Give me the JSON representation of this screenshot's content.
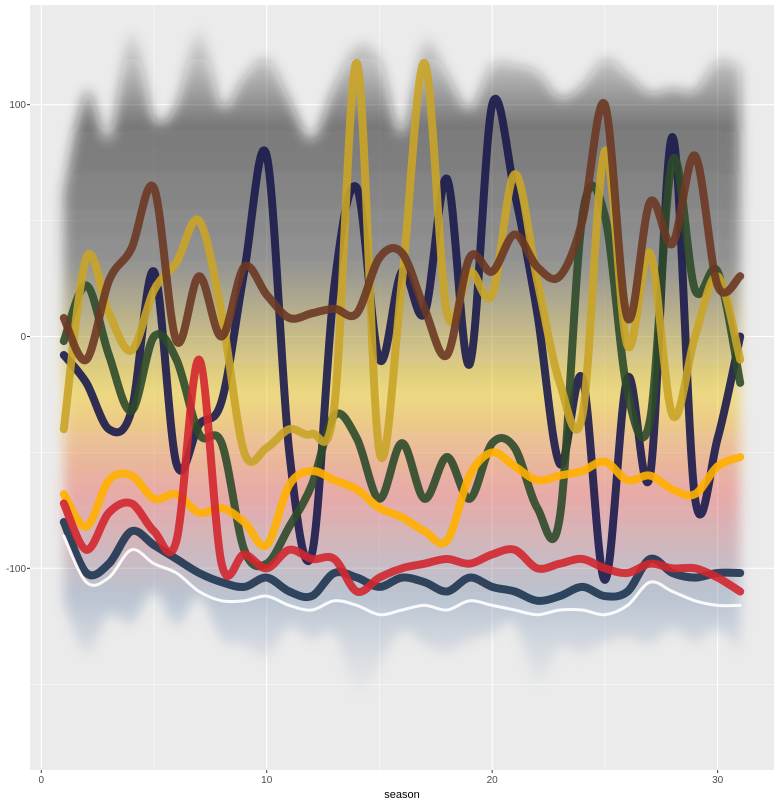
{
  "chart_data": {
    "type": "area",
    "xlabel": "season",
    "ylabel": "",
    "xlim": [
      -0.5,
      32.5
    ],
    "ylim": [
      -187,
      143
    ],
    "x_ticks": [
      0,
      10,
      20,
      30
    ],
    "y_ticks": [
      100,
      0,
      -100
    ],
    "x_tick_labels": [
      "0",
      "10",
      "20",
      "30"
    ],
    "y_tick_labels": [
      "100",
      "0",
      "-100"
    ],
    "grid": true,
    "legend": "none",
    "panel_background": "#ebebeb",
    "grid_color": "#ffffff",
    "seasons": [
      1,
      2,
      3,
      4,
      5,
      6,
      7,
      8,
      9,
      10,
      11,
      12,
      13,
      14,
      15,
      16,
      17,
      18,
      19,
      20,
      21,
      22,
      23,
      24,
      25,
      26,
      27,
      28,
      29,
      30,
      31
    ],
    "upper_envelope": [
      62,
      106,
      85,
      132,
      94,
      100,
      133,
      99,
      112,
      120,
      102,
      85,
      108,
      126,
      120,
      87,
      128,
      113,
      98,
      117,
      117,
      114,
      103,
      108,
      120,
      113,
      105,
      107,
      106,
      119,
      116
    ],
    "lower_envelope": [
      -115,
      -137,
      -120,
      -124,
      -110,
      -125,
      -112,
      -131,
      -133,
      -138,
      -125,
      -131,
      -128,
      -155,
      -142,
      -127,
      -133,
      -136,
      -131,
      -128,
      -124,
      -150,
      -134,
      -137,
      -132,
      -130,
      -133,
      -126,
      -132,
      -126,
      -136
    ],
    "highlight_series": [
      {
        "color": "#1b1b4d",
        "values": [
          -8,
          -20,
          -40,
          -32,
          28,
          -55,
          -38,
          -28,
          28,
          78,
          -50,
          -94,
          22,
          64,
          -10,
          28,
          10,
          68,
          -12,
          100,
          62,
          10,
          -55,
          -18,
          -105,
          -18,
          -60,
          86,
          -70,
          -44,
          0
        ]
      },
      {
        "color": "#2d4a2a",
        "values": [
          -2,
          22,
          -8,
          -32,
          0,
          -10,
          -42,
          -46,
          -92,
          -98,
          -82,
          -64,
          -34,
          -44,
          -70,
          -46,
          -70,
          -52,
          -70,
          -46,
          -48,
          -74,
          -78,
          52,
          52,
          -24,
          -36,
          76,
          20,
          28,
          -20
        ]
      },
      {
        "color": "#c9a427",
        "values": [
          -40,
          34,
          10,
          -6,
          20,
          32,
          50,
          10,
          -50,
          -48,
          -40,
          -42,
          -30,
          118,
          -50,
          24,
          118,
          10,
          28,
          18,
          70,
          24,
          -20,
          -34,
          80,
          -4,
          36,
          -34,
          0,
          26,
          -10
        ]
      },
      {
        "color": "#6b3824",
        "values": [
          8,
          -10,
          24,
          38,
          64,
          -2,
          26,
          0,
          30,
          18,
          8,
          10,
          12,
          10,
          34,
          36,
          12,
          -8,
          34,
          28,
          44,
          30,
          26,
          50,
          100,
          8,
          58,
          40,
          78,
          22,
          26
        ]
      },
      {
        "color": "#1f3550",
        "values": [
          -80,
          -102,
          -98,
          -84,
          -90,
          -96,
          -102,
          -106,
          -108,
          -104,
          -110,
          -112,
          -102,
          -104,
          -108,
          -104,
          -106,
          -110,
          -104,
          -108,
          -110,
          -114,
          -112,
          -108,
          -112,
          -110,
          -96,
          -102,
          -104,
          -102,
          -102
        ]
      },
      {
        "color": "#ffffff",
        "values": [
          -86,
          -106,
          -104,
          -92,
          -98,
          -102,
          -110,
          -114,
          -114,
          -112,
          -116,
          -118,
          -114,
          -116,
          -120,
          -118,
          -116,
          -118,
          -114,
          -116,
          -118,
          -120,
          -118,
          -118,
          -120,
          -116,
          -106,
          -110,
          -114,
          -116,
          -116
        ]
      },
      {
        "color": "#ffb000",
        "values": [
          -68,
          -82,
          -62,
          -60,
          -70,
          -68,
          -76,
          -74,
          -80,
          -90,
          -64,
          -58,
          -62,
          -66,
          -74,
          -78,
          -84,
          -88,
          -60,
          -50,
          -56,
          -62,
          -60,
          -58,
          -54,
          -62,
          -60,
          -66,
          -68,
          -56,
          -52
        ]
      },
      {
        "color": "#d2272f",
        "values": [
          -72,
          -92,
          -76,
          -72,
          -84,
          -88,
          -10,
          -98,
          -94,
          -100,
          -92,
          -96,
          -96,
          -110,
          -104,
          -100,
          -98,
          -96,
          -98,
          -94,
          -92,
          -100,
          -98,
          -96,
          -100,
          -102,
          -98,
          -100,
          -100,
          -104,
          -110
        ]
      }
    ]
  }
}
